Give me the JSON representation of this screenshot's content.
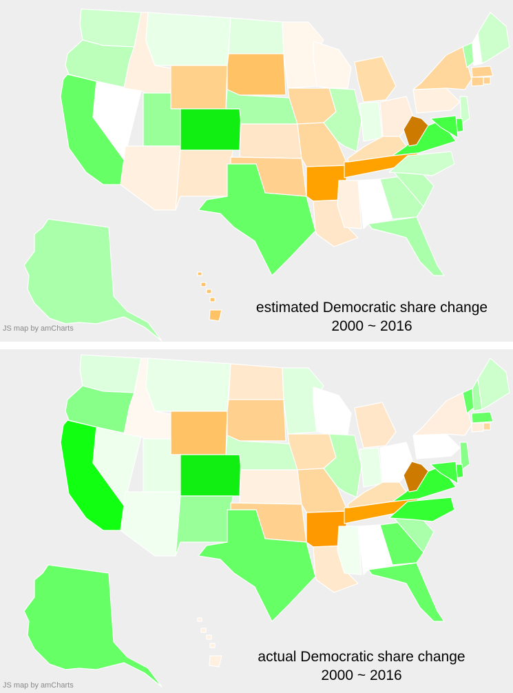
{
  "maps": [
    {
      "id": "estimated",
      "caption_line1": "estimated Democratic share change",
      "caption_line2": "2000 ~ 2016",
      "credit": "JS map by amCharts",
      "colors": {
        "WA": "#ccffcc",
        "OR": "#bbffbb",
        "CA": "#66ff66",
        "NV": "#ffffff",
        "ID": "#fff0e0",
        "MT": "#e8ffe8",
        "WY": "#ffd18a",
        "UT": "#99ff99",
        "AZ": "#fff0e0",
        "CO": "#11ee11",
        "NM": "#ffe8cc",
        "ND": "#e0ffe0",
        "SD": "#ffc366",
        "NE": "#aaffaa",
        "KS": "#ffe6c8",
        "OK": "#ffd08e",
        "TX": "#66ff66",
        "MN": "#fff6ec",
        "IA": "#ffd69b",
        "MO": "#ffd69b",
        "AR": "#ffa200",
        "LA": "#ffe6c8",
        "WI": "#fff6ec",
        "IL": "#bbffbb",
        "MI": "#ffdca8",
        "IN": "#e8ffe8",
        "OH": "#ffeedd",
        "KY": "#ffe0b3",
        "TN": "#ffa200",
        "MS": "#fff0e0",
        "AL": "#ffffff",
        "GA": "#bbffbb",
        "FL": "#aaffaa",
        "SC": "#bbffbb",
        "NC": "#ccffcc",
        "VA": "#44ff44",
        "WV": "#cc7a00",
        "PA": "#fff0e0",
        "NY": "#ffd69b",
        "VT": "#aaffaa",
        "NH": "#ffffff",
        "ME": "#ccffcc",
        "MA": "#ffd08e",
        "RI": "#ffd08e",
        "CT": "#ffd08e",
        "NJ": "#ccffcc",
        "DE": "#44ff44",
        "MD": "#44ff44",
        "AK": "#aaffaa",
        "HI": "#ffc366"
      }
    },
    {
      "id": "actual",
      "caption_line1": "actual Democratic share change",
      "caption_line2": "2000 ~ 2016",
      "credit": "JS map by amCharts",
      "colors": {
        "WA": "#ddffdd",
        "OR": "#88ff88",
        "CA": "#11ff11",
        "NV": "#eeffee",
        "ID": "#fff8f0",
        "MT": "#e8ffe8",
        "WY": "#ffc366",
        "UT": "#e8ffe8",
        "AZ": "#f0fff0",
        "CO": "#11ee11",
        "NM": "#99ff99",
        "ND": "#ffe8cc",
        "SD": "#ffd08e",
        "NE": "#ccffcc",
        "KS": "#fff0e0",
        "OK": "#ffd08e",
        "TX": "#66ff66",
        "MN": "#ddffdd",
        "IA": "#ffe0b3",
        "MO": "#ffd69b",
        "AR": "#ff9900",
        "LA": "#ffe8cc",
        "WI": "#ffffff",
        "IL": "#bbffbb",
        "MI": "#ffe6c8",
        "IN": "#e8ffe8",
        "OH": "#ffffff",
        "KY": "#ffe0b3",
        "TN": "#ffa200",
        "MS": "#f0fff0",
        "AL": "#ffffff",
        "GA": "#66ff66",
        "FL": "#66ff66",
        "SC": "#aaffaa",
        "NC": "#33ff33",
        "VA": "#33ff33",
        "WV": "#cc7a00",
        "PA": "#ffffff",
        "NY": "#ffeedd",
        "VT": "#66ff66",
        "NH": "#aaffaa",
        "ME": "#ccffcc",
        "MA": "#66ff66",
        "RI": "#ffd69b",
        "CT": "#ffeedd",
        "NJ": "#88ff88",
        "DE": "#44ff44",
        "MD": "#44ff44",
        "AK": "#66ff66",
        "HI": "#fff0e0"
      }
    }
  ]
}
